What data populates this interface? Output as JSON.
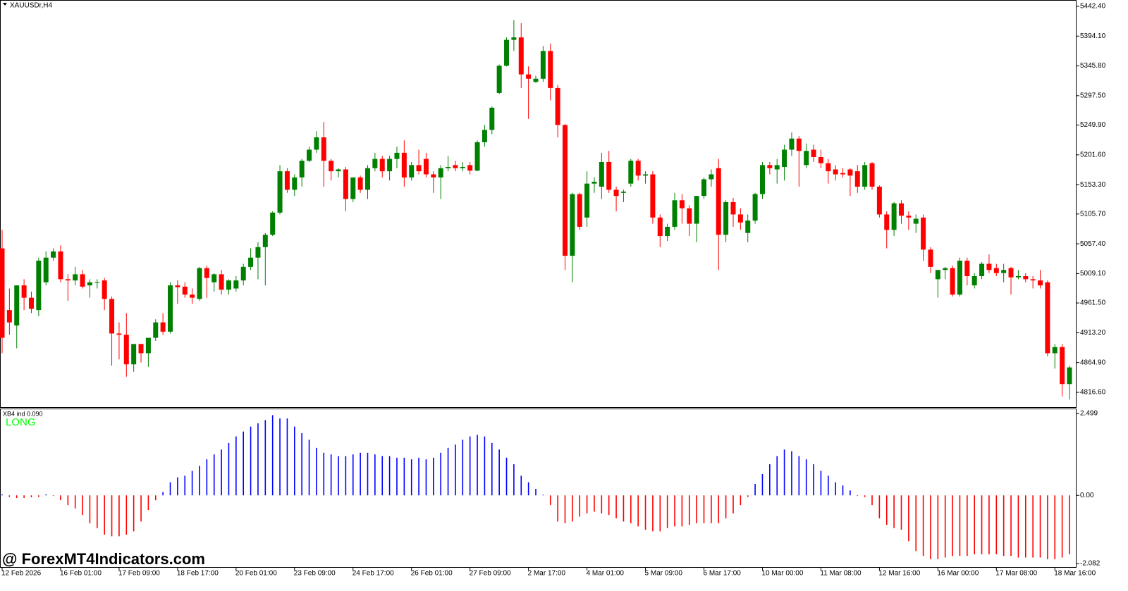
{
  "chart_data": [
    {
      "type": "candlestick",
      "title": "XAUUSDr,H4",
      "categories": [
        "12 Feb 2026",
        null,
        null,
        null,
        null,
        null,
        null,
        null,
        "16 Feb 01:00",
        null,
        null,
        null,
        null,
        null,
        null,
        null,
        "17 Feb 09:00",
        null,
        null,
        null,
        null,
        null,
        null,
        null,
        "18 Feb 17:00",
        null,
        null,
        null,
        null,
        null,
        null,
        null,
        "20 Feb 01:00",
        null,
        null,
        null,
        null,
        null,
        null,
        null,
        "23 Feb 09:00",
        null,
        null,
        null,
        null,
        null,
        null,
        null,
        "24 Feb 17:00",
        null,
        null,
        null,
        null,
        null,
        null,
        null,
        "26 Feb 01:00",
        null,
        null,
        null,
        null,
        null,
        null,
        null,
        "27 Feb 09:00",
        null,
        null,
        null,
        null,
        null,
        null,
        null,
        "2 Mar 17:00",
        null,
        null,
        null,
        null,
        null,
        null,
        null,
        "4 Mar 01:00",
        null,
        null,
        null,
        null,
        null,
        null,
        null,
        "5 Mar 09:00",
        null,
        null,
        null,
        null,
        null,
        null,
        null,
        "6 Mar 17:00",
        null,
        null,
        null,
        null,
        null,
        null,
        null,
        "10 Mar 00:00",
        null,
        null,
        null,
        null,
        null,
        null,
        null,
        "11 Mar 08:00",
        null,
        null,
        null,
        null,
        null,
        null,
        null,
        "12 Mar 16:00",
        null,
        null,
        null,
        null,
        null,
        null,
        null,
        "16 Mar 00:00",
        null,
        null,
        null,
        null,
        null,
        null,
        null,
        "17 Mar 08:00",
        null,
        null,
        null,
        null,
        null,
        null,
        null,
        "18 Mar 16:00",
        null,
        null
      ],
      "open": [
        5050,
        4950,
        4925,
        4990,
        4970,
        4950,
        4995,
        5035,
        5045,
        5000,
        4998,
        5008,
        4990,
        4995,
        4998,
        4968,
        4912,
        4910,
        4862,
        4895,
        4880,
        4905,
        4930,
        4915,
        4990,
        4988,
        4975,
        4968,
        5018,
        4995,
        5008,
        4983,
        4985,
        4998,
        5020,
        5035,
        5052,
        5072,
        5108,
        5175,
        5145,
        5165,
        5192,
        5210,
        5230,
        5192,
        5175,
        5178,
        5130,
        5165,
        5145,
        5180,
        5195,
        5175,
        5195,
        5205,
        5165,
        5185,
        5195,
        5170,
        5165,
        5180,
        5185,
        5180,
        5185,
        5176,
        5222,
        5242,
        5302,
        5346,
        5388,
        5392,
        5332,
        5320,
        5325,
        5370,
        5310,
        5250,
        5038,
        5138,
        5100,
        5155,
        5150,
        5190,
        5145,
        5140,
        5155,
        5192,
        5168,
        5170,
        5100,
        5070,
        5085,
        5128,
        5115,
        5090,
        5135,
        5162,
        5180,
        5072,
        5125,
        5105,
        5075,
        5095,
        5138,
        5185,
        5178,
        5182,
        5210,
        5228,
        5185,
        5210,
        5198,
        5188,
        5178,
        5172,
        5178,
        5175,
        5150,
        5188,
        5150,
        5105,
        5080,
        5123,
        5103,
        5090,
        5100,
        5048,
        5000,
        5015,
        5018,
        4975,
        5030,
        4990,
        5005,
        5025,
        5018,
        5010,
        5018,
        5003,
        5005,
        5000,
        4998,
        4995,
        4880,
        4890,
        4830
      ],
      "high": [
        5080,
        4985,
        4990,
        5000,
        4980,
        5035,
        5045,
        5050,
        5055,
        5008,
        5020,
        5015,
        5000,
        5000,
        5002,
        4972,
        4930,
        4945,
        4890,
        4895,
        4905,
        4935,
        4945,
        4995,
        4998,
        4995,
        4985,
        5020,
        5022,
        5010,
        5015,
        5000,
        5005,
        5025,
        5050,
        5060,
        5075,
        5110,
        5185,
        5180,
        5170,
        5195,
        5215,
        5240,
        5255,
        5195,
        5180,
        5182,
        5165,
        5168,
        5185,
        5205,
        5200,
        5200,
        5215,
        5225,
        5190,
        5210,
        5205,
        5175,
        5185,
        5200,
        5192,
        5190,
        5190,
        5225,
        5250,
        5280,
        5348,
        5392,
        5420,
        5415,
        5345,
        5330,
        5378,
        5382,
        5315,
        5252,
        5140,
        5140,
        5175,
        5165,
        5205,
        5208,
        5150,
        5145,
        5195,
        5195,
        5175,
        5175,
        5105,
        5090,
        5140,
        5138,
        5120,
        5135,
        5165,
        5178,
        5195,
        5128,
        5132,
        5115,
        5105,
        5140,
        5190,
        5190,
        5195,
        5218,
        5238,
        5232,
        5220,
        5218,
        5210,
        5195,
        5185,
        5180,
        5180,
        5185,
        5190,
        5190,
        5152,
        5110,
        5125,
        5128,
        5110,
        5105,
        5105,
        5052,
        5015,
        5020,
        5022,
        5035,
        5035,
        5010,
        5028,
        5040,
        5025,
        5025,
        5020,
        5015,
        5010,
        5005,
        5015,
        4998,
        4895,
        4895,
        4860
      ],
      "low": [
        4880,
        4910,
        4888,
        4950,
        4945,
        4940,
        4990,
        5030,
        4995,
        4965,
        4990,
        4985,
        4970,
        4985,
        4950,
        4860,
        4870,
        4842,
        4850,
        4865,
        4858,
        4900,
        4910,
        4912,
        4960,
        4970,
        4960,
        4965,
        4970,
        4980,
        4975,
        4975,
        4980,
        4990,
        5015,
        5000,
        4990,
        5070,
        5105,
        5140,
        5135,
        5150,
        5190,
        5205,
        5150,
        5160,
        5165,
        5110,
        5125,
        5140,
        5130,
        5175,
        5165,
        5160,
        5180,
        5150,
        5160,
        5170,
        5165,
        5140,
        5130,
        5175,
        5175,
        5175,
        5170,
        5175,
        5215,
        5235,
        5300,
        5345,
        5370,
        5310,
        5260,
        5318,
        5320,
        5290,
        5230,
        5015,
        4995,
        5080,
        5085,
        5140,
        5130,
        5140,
        5110,
        5125,
        5150,
        5160,
        5155,
        5090,
        5052,
        5062,
        5080,
        5090,
        5070,
        5060,
        5130,
        5150,
        5015,
        5060,
        5085,
        5080,
        5060,
        5090,
        5130,
        5170,
        5155,
        5160,
        5200,
        5150,
        5180,
        5190,
        5180,
        5155,
        5160,
        5165,
        5135,
        5140,
        5145,
        5145,
        5100,
        5050,
        5070,
        5090,
        5080,
        5075,
        5030,
        5010,
        4970,
        5000,
        4972,
        4972,
        4990,
        4985,
        5000,
        5010,
        5005,
        4995,
        4975,
        5000,
        4995,
        4985,
        4985,
        4875,
        4855,
        4810,
        4805
      ],
      "close": [
        4905,
        4930,
        4990,
        4970,
        4952,
        5030,
        5035,
        5045,
        5000,
        4998,
        5008,
        4988,
        4995,
        4995,
        4968,
        4912,
        4910,
        4862,
        4895,
        4880,
        4905,
        4930,
        4915,
        4990,
        4987,
        4975,
        4970,
        5018,
        5002,
        5008,
        4983,
        4998,
        4998,
        5020,
        5035,
        5052,
        5072,
        5108,
        5175,
        5145,
        5165,
        5192,
        5210,
        5230,
        5192,
        5175,
        5178,
        5130,
        5165,
        5145,
        5180,
        5195,
        5175,
        5195,
        5205,
        5165,
        5185,
        5175,
        5170,
        5165,
        5180,
        5182,
        5180,
        5182,
        5176,
        5222,
        5242,
        5278,
        5346,
        5388,
        5392,
        5332,
        5325,
        5325,
        5370,
        5310,
        5250,
        5038,
        5138,
        5085,
        5155,
        5158,
        5190,
        5145,
        5135,
        5142,
        5192,
        5168,
        5170,
        5100,
        5070,
        5085,
        5128,
        5115,
        5090,
        5135,
        5162,
        5170,
        5072,
        5125,
        5105,
        5092,
        5095,
        5138,
        5185,
        5180,
        5185,
        5210,
        5228,
        5208,
        5208,
        5198,
        5188,
        5175,
        5170,
        5170,
        5168,
        5150,
        5185,
        5150,
        5105,
        5080,
        5123,
        5103,
        5100,
        5098,
        5048,
        5020,
        5015,
        5018,
        4975,
        5030,
        5005,
        5005,
        5025,
        5015,
        5010,
        5015,
        5003,
        5005,
        5000,
        4998,
        4990,
        4880,
        4890,
        4830,
        4857
      ],
      "up_color": "#008000",
      "down_color": "#ff0000",
      "ylim": [
        4792.6,
        5451.5
      ],
      "yticks": [
        {
          "value": 5442.4,
          "label": "5442.40"
        },
        {
          "value": 5394.1,
          "label": "5394.10"
        },
        {
          "value": 5345.8,
          "label": "5345.80"
        },
        {
          "value": 5297.5,
          "label": "5297.50"
        },
        {
          "value": 5249.9,
          "label": "5249.90"
        },
        {
          "value": 5201.6,
          "label": "5201.60"
        },
        {
          "value": 5153.3,
          "label": "5153.30"
        },
        {
          "value": 5105.7,
          "label": "5105.70"
        },
        {
          "value": 5057.4,
          "label": "5057.40"
        },
        {
          "value": 5009.1,
          "label": "5009.10"
        },
        {
          "value": 4961.5,
          "label": "4961.50"
        },
        {
          "value": 4913.2,
          "label": "4913.20"
        },
        {
          "value": 4864.9,
          "label": "4864.90"
        },
        {
          "value": 4816.6,
          "label": "4816.60"
        }
      ],
      "watermark": "@ ForexMT4Indicators.com"
    },
    {
      "type": "bar",
      "title": "XB4 ind 0.090",
      "annotation": "LONG",
      "values": [
        0.03,
        -0.05,
        -0.08,
        -0.08,
        -0.06,
        -0.05,
        0.03,
        -0.02,
        -0.15,
        -0.3,
        -0.4,
        -0.6,
        -0.85,
        -1,
        -1.2,
        -1.25,
        -1.25,
        -1.2,
        -1.1,
        -0.8,
        -0.45,
        -0.15,
        0.1,
        0.4,
        0.55,
        0.6,
        0.75,
        0.9,
        1.1,
        1.25,
        1.4,
        1.6,
        1.8,
        1.95,
        2.1,
        2.2,
        2.3,
        2.45,
        2.35,
        2.35,
        2.1,
        1.9,
        1.7,
        1.45,
        1.3,
        1.25,
        1.2,
        1.2,
        1.25,
        1.3,
        1.3,
        1.25,
        1.2,
        1.2,
        1.15,
        1.15,
        1.1,
        1.15,
        1.1,
        1.15,
        1.3,
        1.45,
        1.55,
        1.7,
        1.8,
        1.85,
        1.8,
        1.6,
        1.4,
        1.15,
        0.95,
        0.6,
        0.4,
        0.2,
        0.02,
        -0.3,
        -0.8,
        -0.85,
        -0.8,
        -0.65,
        -0.55,
        -0.5,
        -0.55,
        -0.6,
        -0.7,
        -0.8,
        -0.85,
        -0.95,
        -1.05,
        -1.1,
        -1.1,
        -1,
        -0.95,
        -0.95,
        -0.9,
        -0.85,
        -0.85,
        -0.85,
        -0.85,
        -0.7,
        -0.55,
        -0.3,
        -0.05,
        0.35,
        0.65,
        0.95,
        1.2,
        1.4,
        1.35,
        1.2,
        1.1,
        0.95,
        0.75,
        0.6,
        0.4,
        0.3,
        0.15,
        -0.02,
        -0.05,
        -0.3,
        -0.7,
        -0.9,
        -1,
        -1.05,
        -1.4,
        -1.7,
        -1.85,
        -1.95,
        -1.95,
        -1.9,
        -1.85,
        -1.85,
        -1.85,
        -1.8,
        -1.8,
        -1.8,
        -1.8,
        -1.85,
        -1.85,
        -1.9,
        -1.9,
        -1.9,
        -1.9,
        -1.95,
        -1.95,
        -1.9,
        -1.8
      ],
      "positive_color": "#0000ff",
      "negative_color": "#ff0000",
      "ylim": [
        -2.19,
        2.63
      ],
      "yticks": [
        2.499,
        {
          "value": 0,
          "label": "0.00"
        },
        -2.082
      ]
    }
  ]
}
